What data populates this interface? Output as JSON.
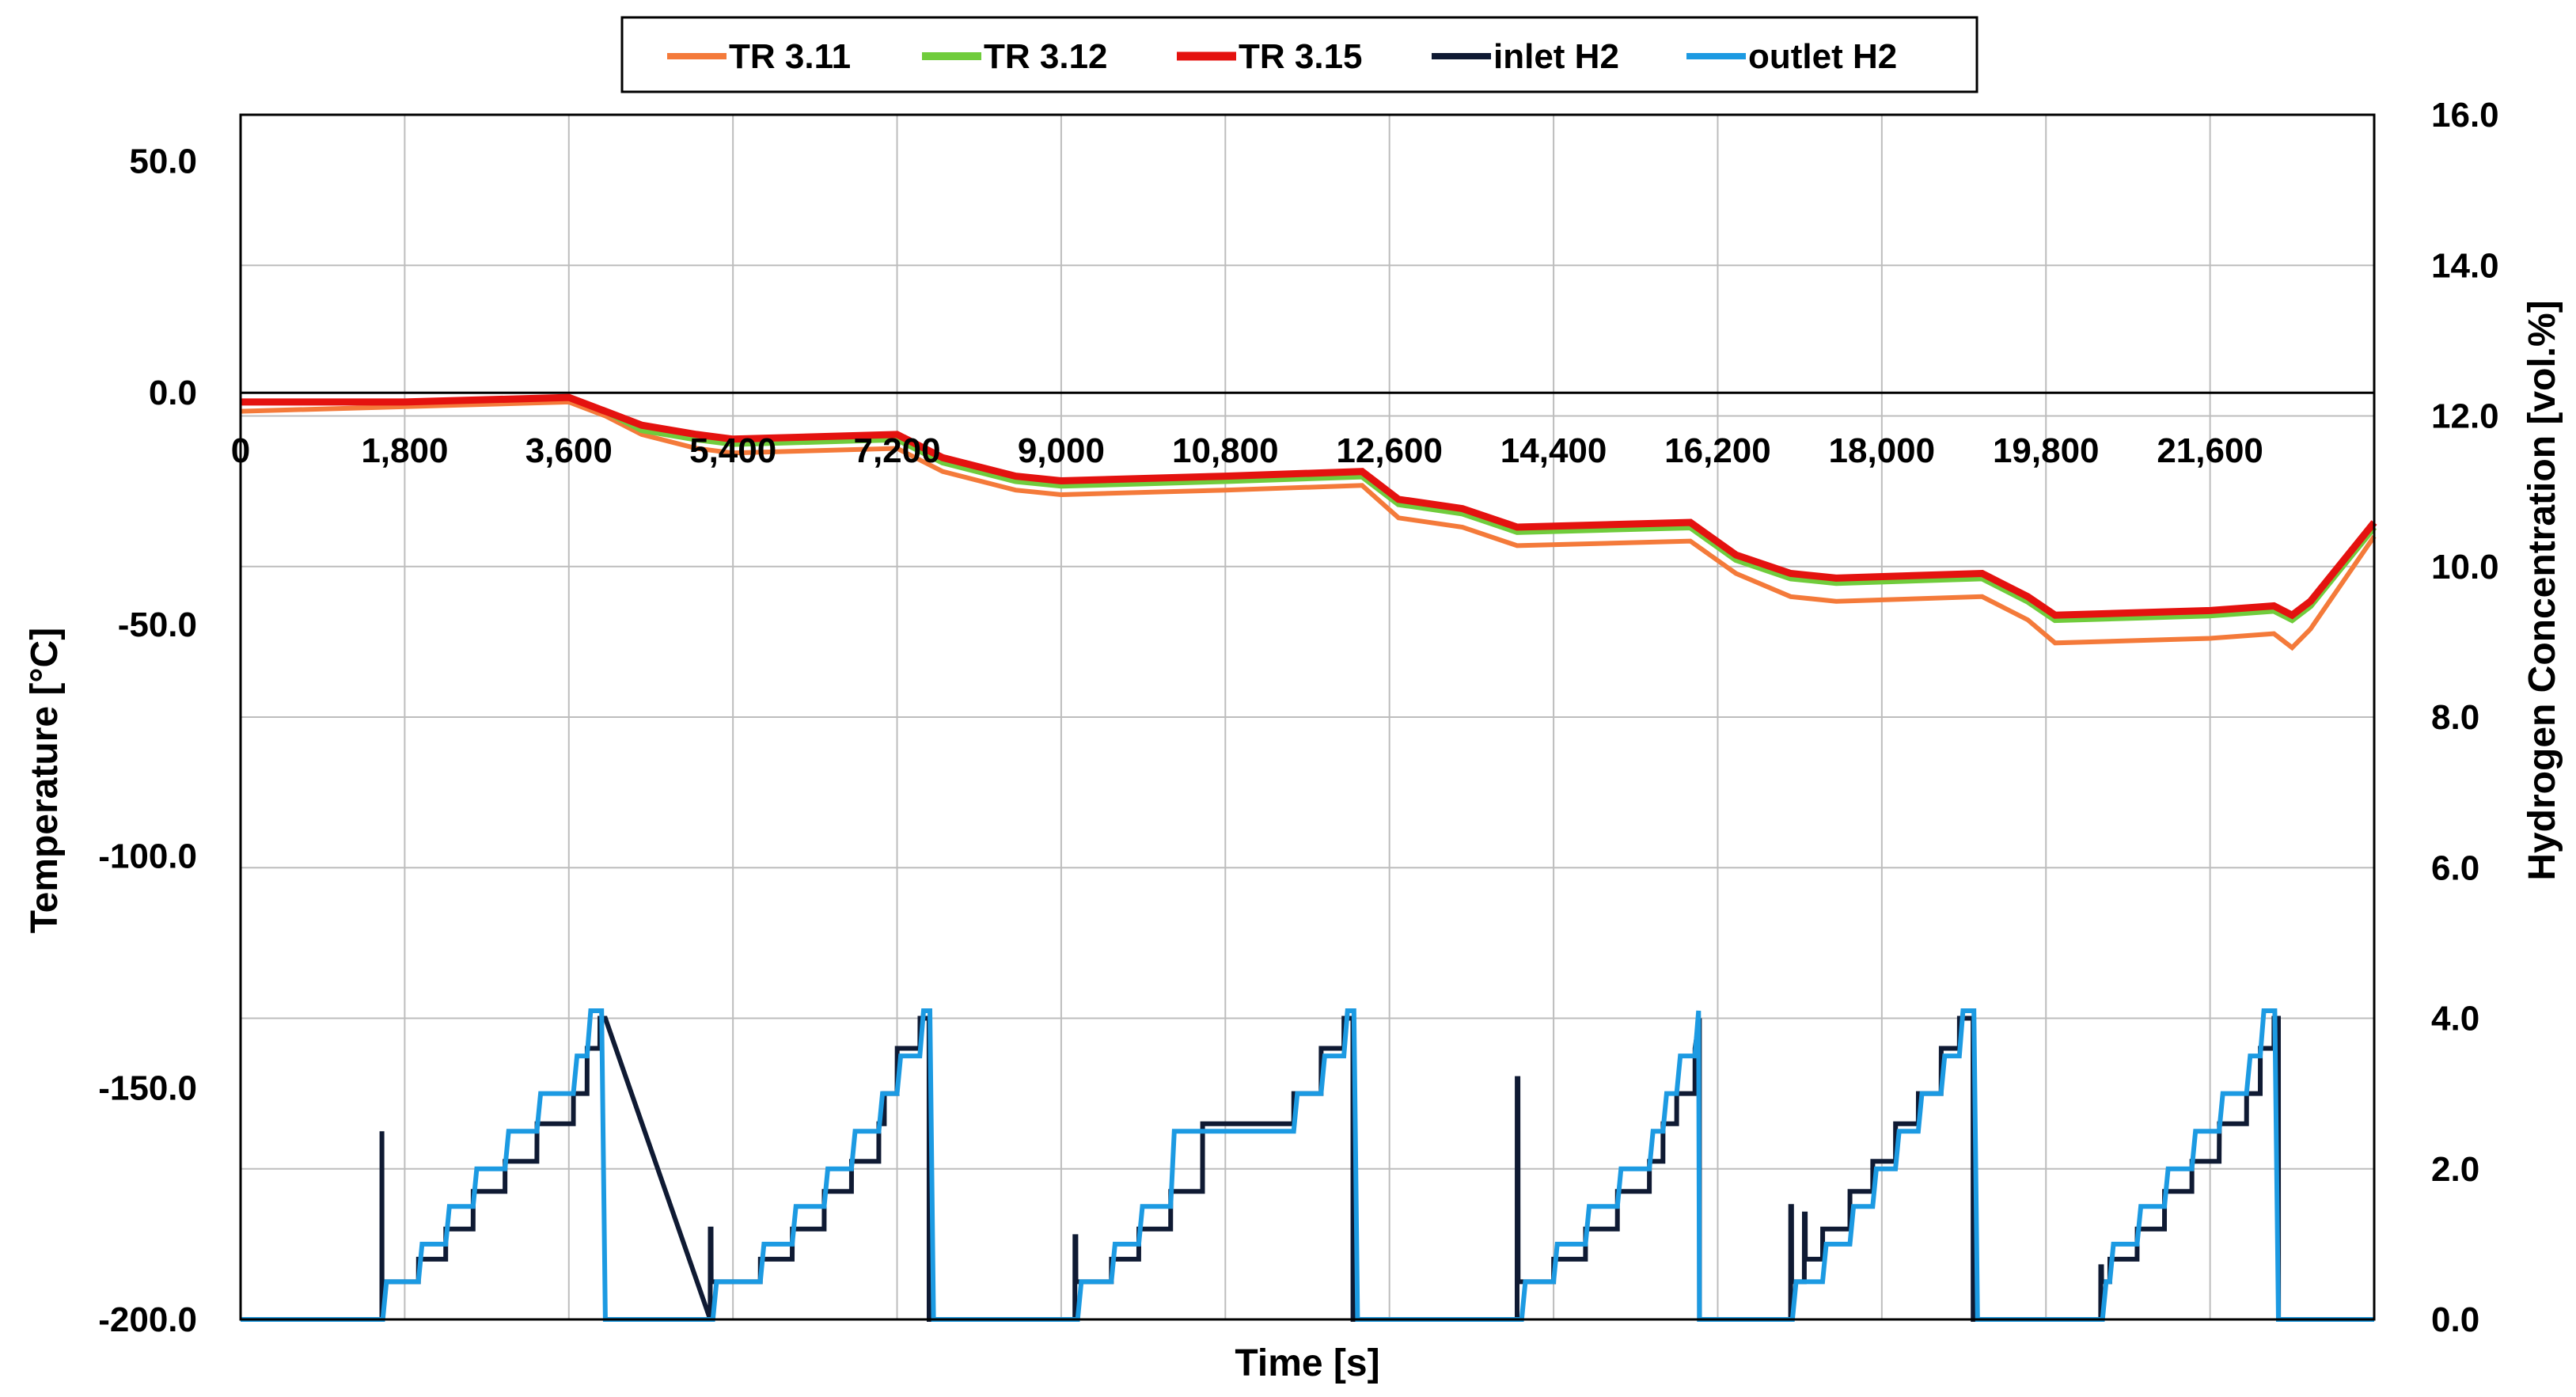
{
  "chart_data": {
    "type": "line",
    "title": "",
    "xlabel": "Time [s]",
    "ylabel_left": "Temperature [°C]",
    "ylabel_right": "Hydrogen Concentration [vol.%]",
    "xlim": [
      0,
      23400
    ],
    "ylim_left": [
      -200,
      60
    ],
    "ylim_right": [
      0,
      16
    ],
    "grid": true,
    "legend_position": "top-center",
    "x_ticks": [
      "0",
      "1,800",
      "3,600",
      "5,400",
      "7,200",
      "9,000",
      "10,800",
      "12,600",
      "14,400",
      "16,200",
      "18,000",
      "19,800",
      "21,600"
    ],
    "y_ticks_left": [
      "50.0",
      "0.0",
      "-50.0",
      "-100.0",
      "-150.0",
      "-200.0"
    ],
    "y_ticks_right": [
      "16.0",
      "14.0",
      "12.0",
      "10.0",
      "8.0",
      "6.0",
      "4.0",
      "2.0",
      "0.0"
    ],
    "series": [
      {
        "name": "TR 3.11",
        "axis": "left",
        "color": "#f47a3a",
        "x": [
          0,
          1800,
          3600,
          4000,
          4400,
          5000,
          5400,
          7200,
          7700,
          8500,
          9000,
          10800,
          12300,
          12700,
          13400,
          14000,
          15900,
          16400,
          17000,
          17500,
          19100,
          19600,
          19900,
          21600,
          22300,
          22500,
          22700,
          23400
        ],
        "y": [
          -4,
          -3,
          -2,
          -5,
          -9,
          -12,
          -13,
          -12,
          -17,
          -21,
          -22,
          -21,
          -20,
          -27,
          -29,
          -33,
          -32,
          -39,
          -44,
          -45,
          -44,
          -49,
          -54,
          -53,
          -52,
          -55,
          -51,
          -31
        ]
      },
      {
        "name": "TR 3.12",
        "axis": "left",
        "color": "#70cc3c",
        "x": [
          0,
          1800,
          3600,
          4000,
          4400,
          5000,
          5400,
          7200,
          7700,
          8500,
          9000,
          10800,
          12300,
          12700,
          13400,
          14000,
          15900,
          16400,
          17000,
          17500,
          19100,
          19600,
          19900,
          21600,
          22300,
          22500,
          22700,
          23400
        ],
        "y": [
          -2,
          -2,
          -1,
          -4,
          -8,
          -10,
          -11,
          -10,
          -15,
          -19,
          -20,
          -19,
          -18,
          -24,
          -26,
          -30,
          -29,
          -36,
          -40,
          -41,
          -40,
          -45,
          -49,
          -48,
          -47,
          -49,
          -46,
          -29
        ]
      },
      {
        "name": "TR 3.15",
        "axis": "left",
        "color": "#e4120f",
        "x": [
          0,
          1800,
          3600,
          4000,
          4400,
          5000,
          5400,
          7200,
          7700,
          8500,
          9000,
          10800,
          12300,
          12700,
          13400,
          14000,
          15900,
          16400,
          17000,
          17500,
          19100,
          19600,
          19900,
          21600,
          22300,
          22500,
          22700,
          23400
        ],
        "y": [
          -2,
          -2,
          -1,
          -4,
          -7,
          -9,
          -10,
          -9,
          -14,
          -18,
          -19,
          -18,
          -17,
          -23,
          -25,
          -29,
          -28,
          -35,
          -39,
          -40,
          -39,
          -44,
          -48,
          -47,
          -46,
          -48,
          -45,
          -28
        ]
      },
      {
        "name": "inlet H2",
        "axis": "right",
        "color": "#0f1a33",
        "x": [
          0,
          1549,
          1550,
          1551,
          1600,
          1601,
          1700,
          1950,
          1951,
          2250,
          2251,
          2550,
          2551,
          2900,
          2901,
          3250,
          3251,
          3650,
          3651,
          3800,
          3801,
          3940,
          3941,
          4000,
          5150,
          5151,
          5160,
          5161,
          5700,
          5701,
          6050,
          6051,
          6400,
          6401,
          6700,
          6701,
          6999,
          7000,
          7060,
          7061,
          7200,
          7201,
          7450,
          7451,
          7550,
          7551,
          7600,
          9150,
          9151,
          9160,
          9161,
          9550,
          9551,
          9850,
          9852,
          10200,
          10201,
          10550,
          10551,
          11550,
          11551,
          11850,
          11851,
          12100,
          12101,
          12199,
          12200,
          12250,
          14000,
          14001,
          14010,
          14011,
          14400,
          14401,
          14750,
          14751,
          15100,
          15101,
          15450,
          15451,
          15600,
          15601,
          15750,
          15751,
          15950,
          15951,
          16000,
          16000,
          17000,
          17001,
          17010,
          17011,
          17150,
          17151,
          17160,
          17161,
          17350,
          17351,
          17650,
          17651,
          17900,
          17901,
          18150,
          18151,
          18400,
          18401,
          18650,
          18651,
          18850,
          18851,
          19000,
          19001,
          19050,
          20400,
          20401,
          20410,
          20411,
          20500,
          20501,
          20800,
          20801,
          21100,
          21101,
          21400,
          21401,
          21700,
          21702,
          22000,
          22001,
          22150,
          22151,
          22300,
          22301,
          22350,
          22351,
          23400
        ],
        "y": [
          0,
          0,
          2.5,
          0.5,
          0.5,
          0.5,
          0.5,
          0.5,
          0.8,
          0.8,
          1.2,
          1.2,
          1.7,
          1.7,
          2.1,
          2.1,
          2.6,
          2.6,
          3.0,
          3.0,
          3.6,
          3.6,
          4.0,
          4.0,
          0,
          1.2,
          1.2,
          0.5,
          0.5,
          0.8,
          0.8,
          1.2,
          1.2,
          1.7,
          1.7,
          2.1,
          2.1,
          2.6,
          2.6,
          3.0,
          3.0,
          3.6,
          3.6,
          4.0,
          4.0,
          0,
          0,
          0,
          1.1,
          1.1,
          0.5,
          0.5,
          0.8,
          0.8,
          1.2,
          1.2,
          1.7,
          1.7,
          2.6,
          2.6,
          3.0,
          3.0,
          3.6,
          3.6,
          4.0,
          4.0,
          0,
          0,
          0,
          3.2,
          3.2,
          0.5,
          0.5,
          0.8,
          0.8,
          1.2,
          1.2,
          1.7,
          1.7,
          2.1,
          2.1,
          2.6,
          2.6,
          3.0,
          3.0,
          3.6,
          4.0,
          0,
          0,
          1.5,
          1.5,
          0.5,
          0.5,
          1.4,
          1.4,
          0.8,
          0.8,
          1.2,
          1.2,
          1.7,
          1.7,
          2.1,
          2.1,
          2.6,
          2.6,
          3.0,
          3.0,
          3.6,
          3.6,
          4.0,
          4.0,
          0,
          0,
          0,
          0.7,
          0.7,
          0.5,
          0.5,
          0.8,
          0.8,
          1.2,
          1.2,
          1.7,
          1.7,
          2.1,
          2.1,
          2.6,
          2.6,
          3.0,
          3.0,
          3.6,
          3.6,
          4.0,
          4.0,
          0,
          0
        ]
      },
      {
        "name": "outlet H2",
        "axis": "right",
        "color": "#1c9ae2",
        "x": [
          0,
          1560,
          1600,
          1700,
          1950,
          1990,
          2250,
          2290,
          2550,
          2590,
          2900,
          2940,
          3250,
          3290,
          3650,
          3690,
          3800,
          3840,
          3960,
          4000,
          5180,
          5220,
          5700,
          5740,
          6050,
          6090,
          6400,
          6440,
          6700,
          6740,
          7000,
          7040,
          7200,
          7240,
          7450,
          7490,
          7560,
          7600,
          9180,
          9220,
          9550,
          9590,
          9850,
          9890,
          10200,
          10240,
          10550,
          10590,
          11550,
          11590,
          11850,
          11890,
          12100,
          12140,
          12210,
          12250,
          14050,
          14090,
          14400,
          14440,
          14750,
          14790,
          15100,
          15140,
          15450,
          15490,
          15600,
          15640,
          15750,
          15790,
          15950,
          15990,
          16000,
          17020,
          17060,
          17350,
          17390,
          17650,
          17690,
          17900,
          17940,
          18150,
          18190,
          18400,
          18440,
          18650,
          18690,
          18850,
          18890,
          19010,
          19050,
          20420,
          20460,
          20500,
          20540,
          20800,
          20840,
          21100,
          21140,
          21400,
          21440,
          21700,
          21740,
          22000,
          22040,
          22150,
          22190,
          22310,
          22350,
          23400
        ],
        "y": [
          0,
          0,
          0.5,
          0.5,
          0.5,
          1.0,
          1.0,
          1.5,
          1.5,
          2.0,
          2.0,
          2.5,
          2.5,
          3.0,
          3.0,
          3.5,
          3.5,
          4.1,
          4.1,
          0,
          0,
          0.5,
          0.5,
          1.0,
          1.0,
          1.5,
          1.5,
          2.0,
          2.0,
          2.5,
          2.5,
          3.0,
          3.0,
          3.5,
          3.5,
          4.1,
          4.1,
          0,
          0,
          0.5,
          0.5,
          1.0,
          1.0,
          1.5,
          1.5,
          2.5,
          2.5,
          2.5,
          2.5,
          3.0,
          3.0,
          3.5,
          3.5,
          4.1,
          4.1,
          0,
          0,
          0.5,
          0.5,
          1.0,
          1.0,
          1.5,
          1.5,
          2.0,
          2.0,
          2.5,
          2.5,
          3.0,
          3.0,
          3.5,
          3.5,
          4.1,
          0,
          0,
          0.5,
          0.5,
          1.0,
          1.0,
          1.5,
          1.5,
          2.0,
          2.0,
          2.5,
          2.5,
          3.0,
          3.0,
          3.5,
          3.5,
          4.1,
          4.1,
          0,
          0,
          0.5,
          0.5,
          1.0,
          1.0,
          1.5,
          1.5,
          2.0,
          2.0,
          2.5,
          2.5,
          3.0,
          3.0,
          3.5,
          3.5,
          4.1,
          4.1,
          0,
          0
        ]
      }
    ]
  }
}
